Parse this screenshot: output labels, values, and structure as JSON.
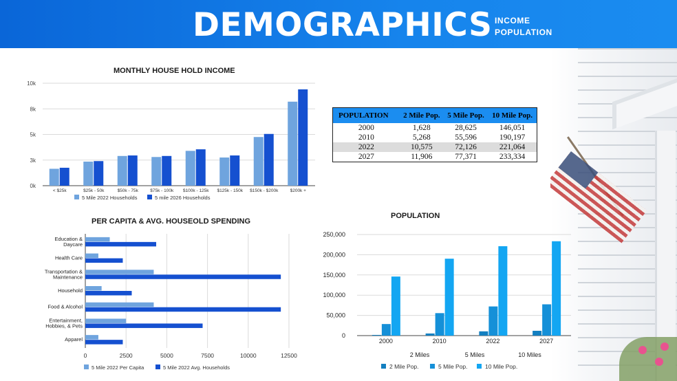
{
  "header": {
    "title": "DEMOGRAPHICS",
    "sub_line1": "INCOME",
    "sub_line2": "POPULATION"
  },
  "colors": {
    "header_blue": "#0a66d8",
    "light_blue": "#6fa4de",
    "dark_blue": "#1550d0",
    "pop_2mile": "#137fc0",
    "pop_5mile": "#1590d8",
    "pop_10mile": "#13a6f2"
  },
  "population_table": {
    "headers": [
      "POPULATION",
      "2 Mile Pop.",
      "5 Mile Pop.",
      "10 Mile Pop."
    ],
    "rows": [
      [
        "2000",
        "1,628",
        "28,625",
        "146,051"
      ],
      [
        "2010",
        "5,268",
        "55,596",
        "190,197"
      ],
      [
        "2022",
        "10,575",
        "72,126",
        "221,064"
      ],
      [
        "2027",
        "11,906",
        "77,371",
        "233,334"
      ]
    ]
  },
  "chart_data": [
    {
      "type": "bar",
      "title": "MONTHLY HOUSE HOLD INCOME",
      "categories": [
        "< $25k",
        "$25k - 50k",
        "$50k - 75k",
        "$75k - 100k",
        "$100k - 125k",
        "$125k - 150k",
        "$150k - $200k",
        "$200k +"
      ],
      "series": [
        {
          "name": "5 Mile 2022 Households",
          "values": [
            1650,
            2350,
            2900,
            2800,
            3400,
            2750,
            4750,
            8200
          ]
        },
        {
          "name": "5 mile 2026 Households",
          "values": [
            1750,
            2400,
            2950,
            2900,
            3550,
            2950,
            5050,
            9400
          ]
        }
      ],
      "yticks": [
        0,
        2500,
        5000,
        7500,
        10000
      ],
      "ytick_labels": [
        "0k",
        "3k",
        "5k",
        "8k",
        "10k"
      ],
      "ylim": [
        0,
        10000
      ],
      "legend": "bottom"
    },
    {
      "type": "bar",
      "orientation": "horizontal",
      "title": "PER CAPITA & AVG. HOUSEOLD SPENDING",
      "categories": [
        "Education &\nDaycare",
        "Health Care",
        "Transportation &\nMaintenance",
        "Household",
        "Food & Alcohol",
        "Entertainment,\nHobbies, & Pets",
        "Apparel"
      ],
      "series": [
        {
          "name": "5 Mile 2022 Per Capita",
          "values": [
            1500,
            800,
            4200,
            1000,
            4200,
            2500,
            800
          ]
        },
        {
          "name": "5 Mile 2022 Avg. Households",
          "values": [
            4350,
            2300,
            12000,
            2850,
            12000,
            7200,
            2300
          ]
        }
      ],
      "xticks": [
        0,
        2500,
        5000,
        7500,
        10000,
        12500
      ],
      "xlim": [
        0,
        12500
      ],
      "legend": "bottom"
    },
    {
      "type": "bar",
      "title": "POPULATION",
      "categories": [
        "2000",
        "2010",
        "2022",
        "2027"
      ],
      "series": [
        {
          "name": "2 Mile Pop.",
          "values": [
            1628,
            5268,
            10575,
            11906
          ]
        },
        {
          "name": "5 Mile Pop.",
          "values": [
            28625,
            55596,
            72126,
            77371
          ]
        },
        {
          "name": "10 Mile Pop.",
          "values": [
            146051,
            190197,
            221064,
            233334
          ]
        }
      ],
      "yticks": [
        0,
        50000,
        100000,
        150000,
        200000,
        250000
      ],
      "ytick_labels": [
        "0",
        "50,000",
        "100,000",
        "150,000",
        "200,000",
        "250,000"
      ],
      "ylim": [
        0,
        250000
      ],
      "axis_group_labels": [
        "2 Miles",
        "5 Miles",
        "10 Miles"
      ],
      "legend": "bottom"
    }
  ]
}
